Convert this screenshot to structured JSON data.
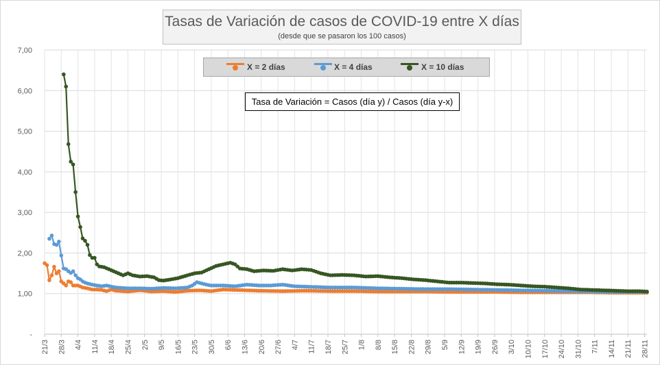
{
  "title": "Tasas de Variación de casos de COVID-19 entre X días",
  "subtitle": "(desde que se pasaron los 100 casos)",
  "formula": "Tasa de Variación = Casos (día y) / Casos (día y-x)",
  "chart_data": {
    "type": "line",
    "ylim": [
      0,
      7
    ],
    "yticks": [
      "-",
      "1,00",
      "2,00",
      "3,00",
      "4,00",
      "5,00",
      "6,00",
      "7,00"
    ],
    "x_start": "21/3",
    "x_end_index": 253,
    "xtick_labels": [
      "21/3",
      "28/3",
      "4/4",
      "11/4",
      "18/4",
      "25/4",
      "2/5",
      "9/5",
      "16/5",
      "23/5",
      "30/5",
      "6/6",
      "13/6",
      "20/6",
      "27/6",
      "4/7",
      "11/7",
      "18/7",
      "25/7",
      "1/8",
      "8/8",
      "15/8",
      "22/8",
      "29/8",
      "5/9",
      "12/9",
      "19/9",
      "26/9",
      "3/10",
      "10/10",
      "17/10",
      "24/10",
      "31/10",
      "7/11",
      "14/11",
      "21/11",
      "28/11"
    ],
    "grid": true,
    "legend_position": "top",
    "series": [
      {
        "name": "X = 2 días",
        "color": "#ed7d31",
        "points": [
          [
            0,
            1.75
          ],
          [
            1,
            1.7
          ],
          [
            2,
            1.33
          ],
          [
            3,
            1.45
          ],
          [
            4,
            1.66
          ],
          [
            5,
            1.5
          ],
          [
            6,
            1.55
          ],
          [
            7,
            1.3
          ],
          [
            8,
            1.25
          ],
          [
            9,
            1.2
          ],
          [
            10,
            1.3
          ],
          [
            11,
            1.28
          ],
          [
            12,
            1.2
          ],
          [
            14,
            1.2
          ],
          [
            16,
            1.15
          ],
          [
            18,
            1.13
          ],
          [
            20,
            1.1
          ],
          [
            22,
            1.1
          ],
          [
            24,
            1.09
          ],
          [
            26,
            1.06
          ],
          [
            28,
            1.1
          ],
          [
            30,
            1.07
          ],
          [
            35,
            1.05
          ],
          [
            40,
            1.08
          ],
          [
            45,
            1.05
          ],
          [
            50,
            1.06
          ],
          [
            55,
            1.04
          ],
          [
            60,
            1.07
          ],
          [
            65,
            1.08
          ],
          [
            70,
            1.06
          ],
          [
            75,
            1.1
          ],
          [
            80,
            1.09
          ],
          [
            85,
            1.08
          ],
          [
            90,
            1.07
          ],
          [
            100,
            1.06
          ],
          [
            110,
            1.07
          ],
          [
            120,
            1.06
          ],
          [
            130,
            1.06
          ],
          [
            140,
            1.05
          ],
          [
            150,
            1.05
          ],
          [
            160,
            1.05
          ],
          [
            170,
            1.04
          ],
          [
            180,
            1.04
          ],
          [
            190,
            1.04
          ],
          [
            200,
            1.03
          ],
          [
            210,
            1.03
          ],
          [
            220,
            1.03
          ],
          [
            230,
            1.03
          ],
          [
            240,
            1.02
          ],
          [
            253,
            1.02
          ]
        ]
      },
      {
        "name": "X = 4 días",
        "color": "#5b9bd5",
        "points": [
          [
            2,
            2.35
          ],
          [
            3,
            2.43
          ],
          [
            4,
            2.22
          ],
          [
            5,
            2.2
          ],
          [
            6,
            2.28
          ],
          [
            7,
            1.94
          ],
          [
            8,
            1.62
          ],
          [
            9,
            1.6
          ],
          [
            10,
            1.55
          ],
          [
            11,
            1.51
          ],
          [
            12,
            1.55
          ],
          [
            13,
            1.45
          ],
          [
            14,
            1.38
          ],
          [
            15,
            1.35
          ],
          [
            16,
            1.3
          ],
          [
            17,
            1.27
          ],
          [
            18,
            1.25
          ],
          [
            20,
            1.22
          ],
          [
            22,
            1.2
          ],
          [
            24,
            1.18
          ],
          [
            26,
            1.2
          ],
          [
            28,
            1.17
          ],
          [
            30,
            1.15
          ],
          [
            35,
            1.13
          ],
          [
            40,
            1.13
          ],
          [
            45,
            1.12
          ],
          [
            50,
            1.14
          ],
          [
            55,
            1.13
          ],
          [
            60,
            1.15
          ],
          [
            62,
            1.2
          ],
          [
            64,
            1.28
          ],
          [
            66,
            1.25
          ],
          [
            68,
            1.22
          ],
          [
            70,
            1.2
          ],
          [
            75,
            1.2
          ],
          [
            80,
            1.18
          ],
          [
            85,
            1.22
          ],
          [
            90,
            1.2
          ],
          [
            95,
            1.2
          ],
          [
            100,
            1.22
          ],
          [
            105,
            1.18
          ],
          [
            110,
            1.17
          ],
          [
            120,
            1.15
          ],
          [
            130,
            1.15
          ],
          [
            140,
            1.13
          ],
          [
            150,
            1.12
          ],
          [
            160,
            1.11
          ],
          [
            170,
            1.11
          ],
          [
            180,
            1.1
          ],
          [
            190,
            1.09
          ],
          [
            200,
            1.08
          ],
          [
            210,
            1.07
          ],
          [
            220,
            1.06
          ],
          [
            230,
            1.05
          ],
          [
            240,
            1.04
          ],
          [
            253,
            1.04
          ]
        ]
      },
      {
        "name": "X = 10 días",
        "color": "#375623",
        "points": [
          [
            8,
            6.4
          ],
          [
            9,
            6.1
          ],
          [
            10,
            4.68
          ],
          [
            11,
            4.25
          ],
          [
            12,
            4.18
          ],
          [
            13,
            3.5
          ],
          [
            14,
            2.9
          ],
          [
            15,
            2.64
          ],
          [
            16,
            2.36
          ],
          [
            17,
            2.3
          ],
          [
            18,
            2.2
          ],
          [
            19,
            1.95
          ],
          [
            20,
            1.88
          ],
          [
            21,
            1.88
          ],
          [
            22,
            1.72
          ],
          [
            23,
            1.67
          ],
          [
            25,
            1.65
          ],
          [
            27,
            1.6
          ],
          [
            29,
            1.55
          ],
          [
            31,
            1.5
          ],
          [
            33,
            1.45
          ],
          [
            35,
            1.5
          ],
          [
            37,
            1.45
          ],
          [
            40,
            1.42
          ],
          [
            43,
            1.43
          ],
          [
            46,
            1.4
          ],
          [
            48,
            1.33
          ],
          [
            50,
            1.32
          ],
          [
            53,
            1.35
          ],
          [
            56,
            1.38
          ],
          [
            60,
            1.45
          ],
          [
            63,
            1.5
          ],
          [
            66,
            1.52
          ],
          [
            69,
            1.6
          ],
          [
            72,
            1.68
          ],
          [
            75,
            1.72
          ],
          [
            78,
            1.76
          ],
          [
            80,
            1.72
          ],
          [
            82,
            1.62
          ],
          [
            85,
            1.6
          ],
          [
            88,
            1.55
          ],
          [
            92,
            1.57
          ],
          [
            96,
            1.56
          ],
          [
            100,
            1.6
          ],
          [
            104,
            1.57
          ],
          [
            108,
            1.6
          ],
          [
            112,
            1.58
          ],
          [
            116,
            1.5
          ],
          [
            120,
            1.45
          ],
          [
            125,
            1.46
          ],
          [
            130,
            1.45
          ],
          [
            135,
            1.42
          ],
          [
            140,
            1.43
          ],
          [
            145,
            1.4
          ],
          [
            150,
            1.38
          ],
          [
            155,
            1.35
          ],
          [
            160,
            1.33
          ],
          [
            165,
            1.3
          ],
          [
            170,
            1.27
          ],
          [
            175,
            1.27
          ],
          [
            180,
            1.26
          ],
          [
            185,
            1.25
          ],
          [
            190,
            1.23
          ],
          [
            195,
            1.22
          ],
          [
            200,
            1.2
          ],
          [
            205,
            1.18
          ],
          [
            210,
            1.17
          ],
          [
            215,
            1.15
          ],
          [
            220,
            1.13
          ],
          [
            225,
            1.1
          ],
          [
            230,
            1.09
          ],
          [
            235,
            1.08
          ],
          [
            240,
            1.07
          ],
          [
            245,
            1.06
          ],
          [
            250,
            1.06
          ],
          [
            253,
            1.05
          ]
        ]
      }
    ]
  }
}
